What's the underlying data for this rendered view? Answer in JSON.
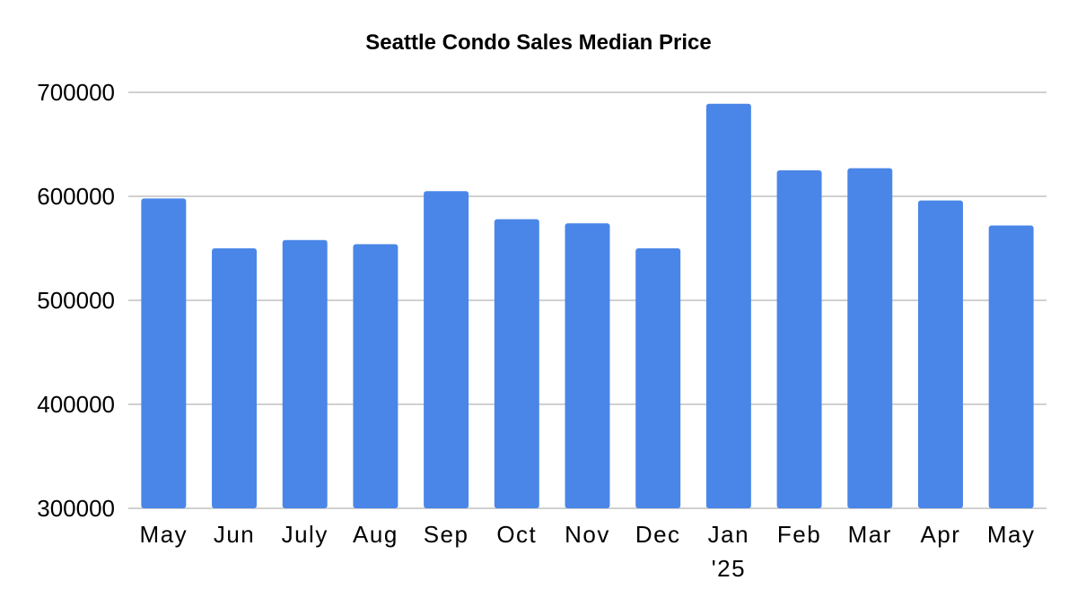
{
  "chart_data": {
    "type": "bar",
    "title": "Seattle Condo Sales Median Price",
    "categories": [
      [
        "May"
      ],
      [
        "Jun"
      ],
      [
        "July"
      ],
      [
        "Aug"
      ],
      [
        "Sep"
      ],
      [
        "Oct"
      ],
      [
        "Nov"
      ],
      [
        "Dec"
      ],
      [
        "Jan",
        "'25"
      ],
      [
        "Feb"
      ],
      [
        "Mar"
      ],
      [
        "Apr"
      ],
      [
        "May"
      ]
    ],
    "values": [
      598000,
      550000,
      558000,
      554000,
      605000,
      578000,
      574000,
      550000,
      689000,
      625000,
      627000,
      596000,
      572000
    ],
    "ylim": [
      300000,
      700000
    ],
    "yticks": [
      "300000",
      "400000",
      "500000",
      "600000",
      "700000"
    ],
    "grid": true,
    "legend": "none",
    "bar_color": "#4a86e8",
    "grid_color": "#d0d0d0"
  }
}
